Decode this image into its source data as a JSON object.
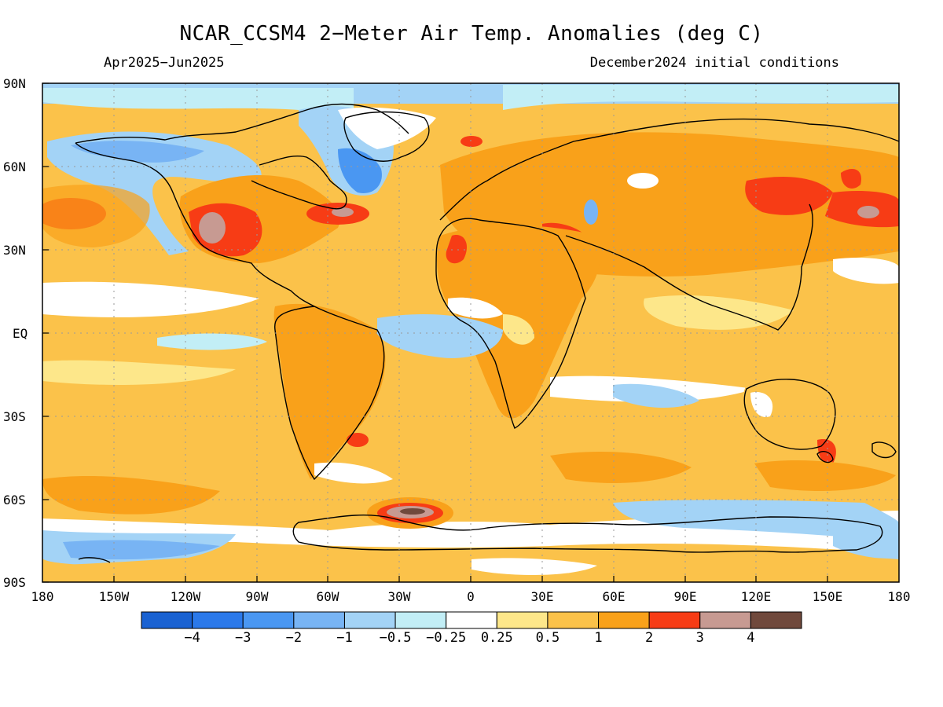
{
  "header": {
    "title": "NCAR_CCSM4 2−Meter Air Temp. Anomalies (deg C)",
    "period": "Apr2025−Jun2025",
    "init": "December2024 initial conditions"
  },
  "axes": {
    "lat_ticks": [
      "90N",
      "60N",
      "30N",
      "EQ",
      "30S",
      "60S",
      "90S"
    ],
    "lon_ticks": [
      "180",
      "150W",
      "120W",
      "90W",
      "60W",
      "30W",
      "0",
      "30E",
      "60E",
      "90E",
      "120E",
      "150E",
      "180"
    ]
  },
  "colorbar": {
    "labels": [
      "−4",
      "−3",
      "−2",
      "−1",
      "−0.5",
      "−0.25",
      "0.25",
      "0.5",
      "1",
      "2",
      "3",
      "4"
    ],
    "colors": [
      "#1a62d2",
      "#2b79ea",
      "#4a97f2",
      "#78b4f4",
      "#a3d3f6",
      "#c2eef6",
      "#ffffff",
      "#fde78a",
      "#fbc24a",
      "#f9a11a",
      "#f73c15",
      "#c79a92",
      "#70493c"
    ]
  },
  "palette": {
    "ocean_warm": "#fbc24a",
    "land_warm": "#f9a11a",
    "neutral": "#ffffff",
    "coastline": "#000000"
  }
}
